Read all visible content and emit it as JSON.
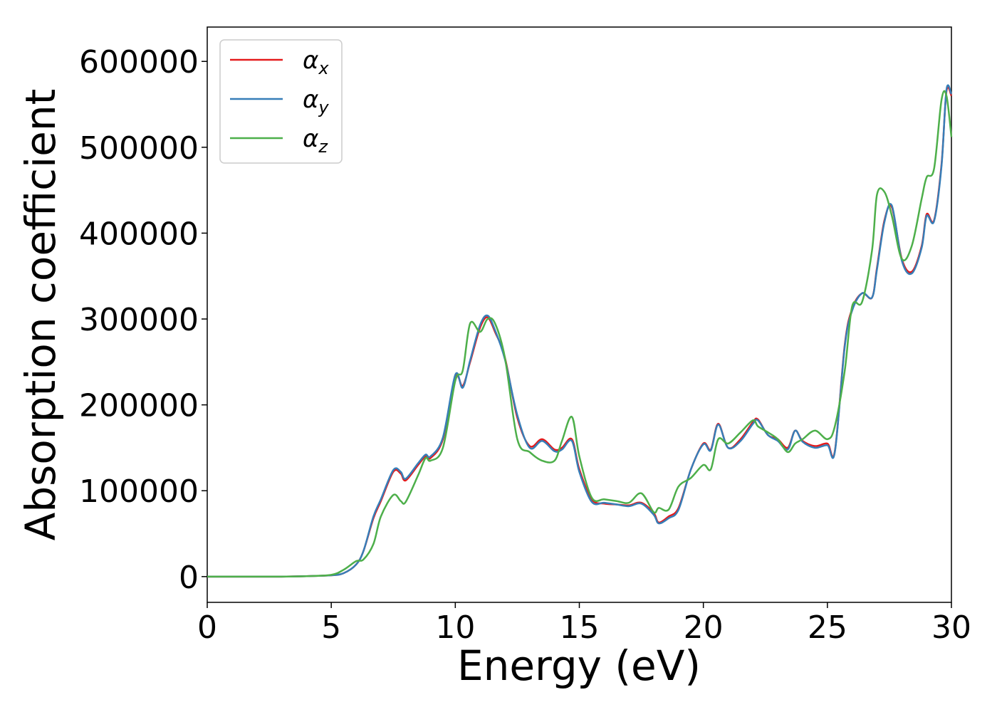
{
  "chart_data": {
    "type": "line",
    "title": "",
    "xlabel": "Energy (eV)",
    "ylabel": "Absorption coefficient",
    "xlim": [
      0,
      30
    ],
    "ylim": [
      -30000,
      640000
    ],
    "xticks": [
      0,
      5,
      10,
      15,
      20,
      25,
      30
    ],
    "yticks": [
      0,
      100000,
      200000,
      300000,
      400000,
      500000,
      600000
    ],
    "grid": false,
    "legend_position": "top-left",
    "x": [
      0,
      1,
      2,
      3,
      4,
      5,
      5.5,
      6,
      6.3,
      6.7,
      7,
      7.5,
      7.8,
      8,
      8.5,
      8.8,
      9,
      9.5,
      10,
      10.3,
      10.6,
      11,
      11.3,
      11.6,
      12,
      12.5,
      13,
      13.5,
      14,
      14.3,
      14.7,
      15,
      15.5,
      16,
      16.5,
      17,
      17.5,
      18,
      18.2,
      18.6,
      19,
      19.5,
      20,
      20.3,
      20.6,
      21,
      21.5,
      22,
      22.2,
      22.6,
      23,
      23.4,
      23.7,
      24,
      24.5,
      25,
      25.3,
      25.7,
      26,
      26.4,
      26.8,
      27,
      27.3,
      27.6,
      28,
      28.4,
      28.8,
      29,
      29.3,
      29.6,
      29.8,
      30
    ],
    "series": [
      {
        "name": "αx",
        "sub": "x",
        "color": "#e41a1c",
        "values": [
          0,
          0,
          0,
          0,
          500,
          1500,
          4000,
          14000,
          30000,
          68000,
          88000,
          122000,
          120000,
          112000,
          130000,
          140000,
          138000,
          160000,
          232000,
          222000,
          250000,
          290000,
          302000,
          285000,
          255000,
          185000,
          152000,
          160000,
          148000,
          150000,
          160000,
          125000,
          90000,
          85000,
          84000,
          83000,
          86000,
          74000,
          63000,
          70000,
          80000,
          125000,
          155000,
          148000,
          178000,
          150000,
          160000,
          180000,
          183000,
          165000,
          160000,
          150000,
          170000,
          158000,
          152000,
          155000,
          146000,
          270000,
          312000,
          330000,
          325000,
          360000,
          415000,
          430000,
          370000,
          355000,
          385000,
          422000,
          415000,
          480000,
          565000,
          560000
        ]
      },
      {
        "name": "αy",
        "sub": "y",
        "color": "#377eb8",
        "values": [
          0,
          0,
          0,
          0,
          500,
          1500,
          4000,
          14000,
          30000,
          70000,
          90000,
          124000,
          122000,
          114000,
          132000,
          142000,
          140000,
          162000,
          235000,
          220000,
          252000,
          293000,
          304000,
          287000,
          253000,
          188000,
          150000,
          158000,
          146000,
          148000,
          158000,
          122000,
          87000,
          86000,
          84000,
          82000,
          85000,
          72000,
          62000,
          68000,
          78000,
          125000,
          154000,
          147000,
          177000,
          150000,
          158000,
          178000,
          182000,
          165000,
          158000,
          148000,
          170000,
          157000,
          150000,
          153000,
          145000,
          268000,
          310000,
          330000,
          325000,
          358000,
          413000,
          432000,
          368000,
          353000,
          383000,
          420000,
          414000,
          478000,
          567000,
          562000
        ]
      },
      {
        "name": "αz",
        "sub": "z",
        "color": "#4daf4a",
        "values": [
          0,
          0,
          0,
          0,
          500,
          2000,
          8000,
          18000,
          20000,
          38000,
          70000,
          95000,
          88000,
          87000,
          118000,
          138000,
          135000,
          150000,
          228000,
          240000,
          295000,
          285000,
          300000,
          295000,
          255000,
          160000,
          145000,
          135000,
          135000,
          158000,
          186000,
          140000,
          92000,
          90000,
          88000,
          86000,
          97000,
          75000,
          80000,
          78000,
          105000,
          115000,
          130000,
          125000,
          160000,
          155000,
          168000,
          182000,
          175000,
          168000,
          160000,
          145000,
          155000,
          160000,
          170000,
          160000,
          175000,
          240000,
          315000,
          320000,
          380000,
          445000,
          448000,
          420000,
          370000,
          385000,
          440000,
          465000,
          475000,
          555000,
          560000,
          512000
        ]
      }
    ]
  }
}
